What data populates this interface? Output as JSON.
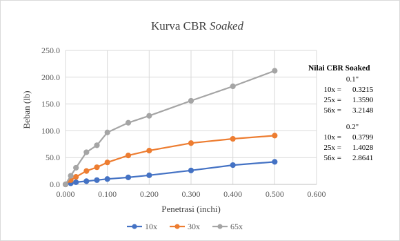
{
  "chart_data": {
    "type": "line",
    "title_main": "Kurva CBR",
    "title_italic": "Soaked",
    "xlabel": "Penetrasi (inchi)",
    "ylabel": "Beban (lb)",
    "xlim": [
      0,
      0.6
    ],
    "ylim": [
      0,
      250
    ],
    "x_ticks": [
      "0.000",
      "0.100",
      "0.200",
      "0.300",
      "0.400",
      "0.500",
      "0.600"
    ],
    "y_ticks": [
      "0.0",
      "50.0",
      "100.0",
      "150.0",
      "200.0",
      "250.0"
    ],
    "grid": true,
    "legend_position": "bottom",
    "series": [
      {
        "name": "10x",
        "color": "#4472C4",
        "x": [
          0,
          0.0125,
          0.025,
          0.05,
          0.075,
          0.1,
          0.15,
          0.2,
          0.3,
          0.4,
          0.5
        ],
        "y": [
          0,
          2,
          4,
          6,
          8,
          10,
          13,
          17,
          26,
          36,
          42
        ]
      },
      {
        "name": "30x",
        "color": "#ED7D31",
        "x": [
          0,
          0.0125,
          0.025,
          0.05,
          0.075,
          0.1,
          0.15,
          0.2,
          0.3,
          0.4,
          0.5
        ],
        "y": [
          0,
          8,
          14,
          25,
          32,
          41,
          54,
          63,
          77,
          85,
          91
        ]
      },
      {
        "name": "65x",
        "color": "#A5A5A5",
        "x": [
          0,
          0.0125,
          0.025,
          0.05,
          0.075,
          0.1,
          0.15,
          0.2,
          0.3,
          0.4,
          0.5
        ],
        "y": [
          0,
          16,
          31,
          60,
          73,
          97,
          115,
          128,
          156,
          183,
          212
        ]
      }
    ]
  },
  "cbr_panel": {
    "title": "Nilai CBR Soaked",
    "sections": [
      {
        "heading": "0.1\"",
        "rows": [
          {
            "label": "10x =",
            "value": "0.3215"
          },
          {
            "label": "25x =",
            "value": "1.3590"
          },
          {
            "label": "56x =",
            "value": "3.2148"
          }
        ]
      },
      {
        "heading": "0.2\"",
        "rows": [
          {
            "label": "10x =",
            "value": "0.3799"
          },
          {
            "label": "25x =",
            "value": "1.4028"
          },
          {
            "label": "56x =",
            "value": "2.8641"
          }
        ]
      }
    ]
  }
}
